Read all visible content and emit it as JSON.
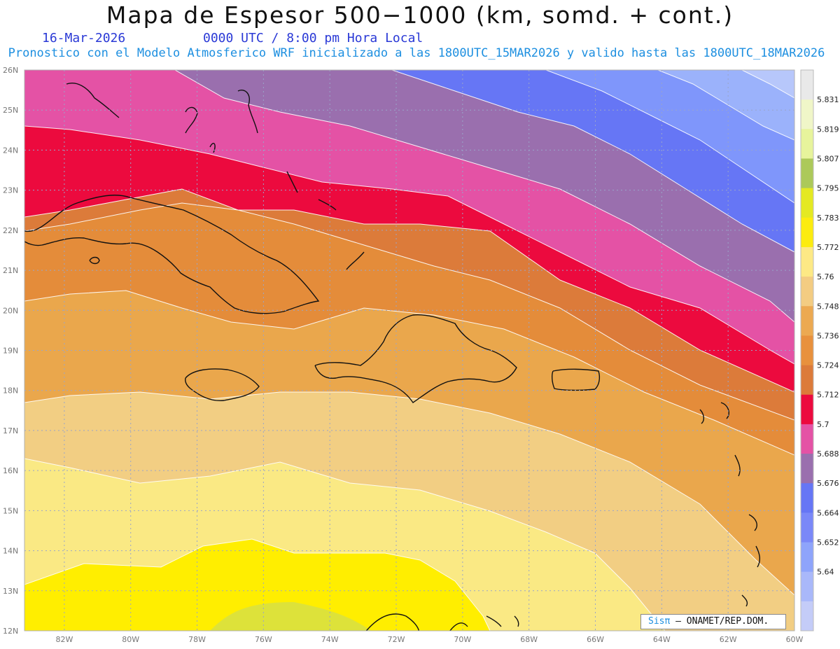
{
  "header": {
    "title": "Mapa de Espesor 500−1000 (km, somd. + cont.)",
    "date": "16-Mar-2026",
    "time": "0000 UTC / 8:00 pm Hora Local",
    "model": "Pronostico con el Modelo Atmosferico WRF inicializado a las 1800UTC_15MAR2026 y valido hasta las  1800UTC_18MAR2026"
  },
  "map": {
    "lat_labels": [
      "26N",
      "25N",
      "24N",
      "23N",
      "22N",
      "21N",
      "20N",
      "19N",
      "18N",
      "17N",
      "16N",
      "15N",
      "14N",
      "13N",
      "12N"
    ],
    "lon_labels": [
      "82W",
      "80W",
      "78W",
      "76W",
      "74W",
      "72W",
      "70W",
      "68W",
      "66W",
      "64W",
      "62W",
      "60W"
    ],
    "lat_range": [
      12,
      26
    ],
    "lon_range": [
      -83.2,
      -60
    ]
  },
  "colorbar": {
    "labels": [
      "5.64",
      "5.652",
      "5.664",
      "5.676",
      "5.688",
      "5.7",
      "5.712",
      "5.724",
      "5.736",
      "5.748",
      "5.76",
      "5.772",
      "5.783",
      "5.795",
      "5.807",
      "5.819",
      "5.831"
    ],
    "colors": [
      "#c4ccf8",
      "#a9b8fa",
      "#8ea4fb",
      "#7a88f8",
      "#6676f5",
      "#9a6fae",
      "#e452a5",
      "#ec0a3e",
      "#dc7b3a",
      "#e8913d",
      "#eca951",
      "#f3cc82",
      "#fde985",
      "#fcec0f",
      "#e4e922",
      "#acc95a",
      "#e7f49c",
      "#f0f6c8",
      "#e9e9e9"
    ]
  },
  "bands": {
    "colors": [
      "#ffee00",
      "#fae984",
      "#f2ce83",
      "#eaa74c",
      "#e48c3a",
      "#dc7b3a",
      "#ec0a3e",
      "#e452a5",
      "#9a6fae",
      "#6676f5",
      "#7f96fb",
      "#9bb2fb",
      "#b7c7fb",
      "#dde23a"
    ]
  },
  "credit": {
    "sis": "Sisπ",
    "org": "– ONAMET/REP.DOM."
  }
}
